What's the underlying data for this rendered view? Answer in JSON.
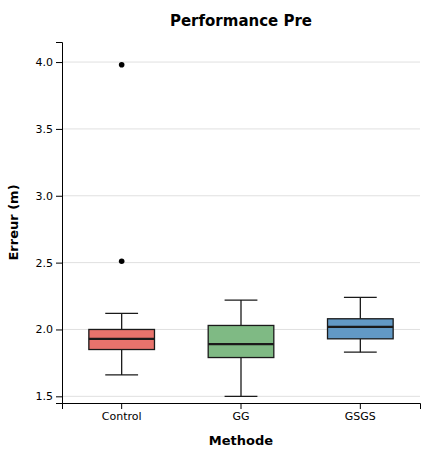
{
  "chart_data": {
    "type": "box",
    "title": "Performance Pre",
    "x_label": "Methode",
    "y_label": "Erreur (m)",
    "categories": [
      "Control",
      "GG",
      "GSGS"
    ],
    "colors": [
      "#e8736c",
      "#7fba84",
      "#6299c5"
    ],
    "q1": [
      1.85,
      1.79,
      1.93
    ],
    "median": [
      1.93,
      1.89,
      2.02
    ],
    "q3": [
      2.0,
      2.03,
      2.08
    ],
    "whislo": [
      1.66,
      1.5,
      1.83
    ],
    "whishi": [
      2.12,
      2.22,
      2.24
    ],
    "fliers": [
      [
        2.51,
        3.98
      ],
      [],
      []
    ],
    "ylim": [
      1.45,
      4.15
    ],
    "yticks": [
      1.5,
      {
        "value": 2,
        "label": "2.0"
      },
      2.5,
      {
        "value": 3,
        "label": "3.0"
      },
      3.5,
      {
        "value": 4,
        "label": "4.0"
      }
    ],
    "grid": true
  }
}
